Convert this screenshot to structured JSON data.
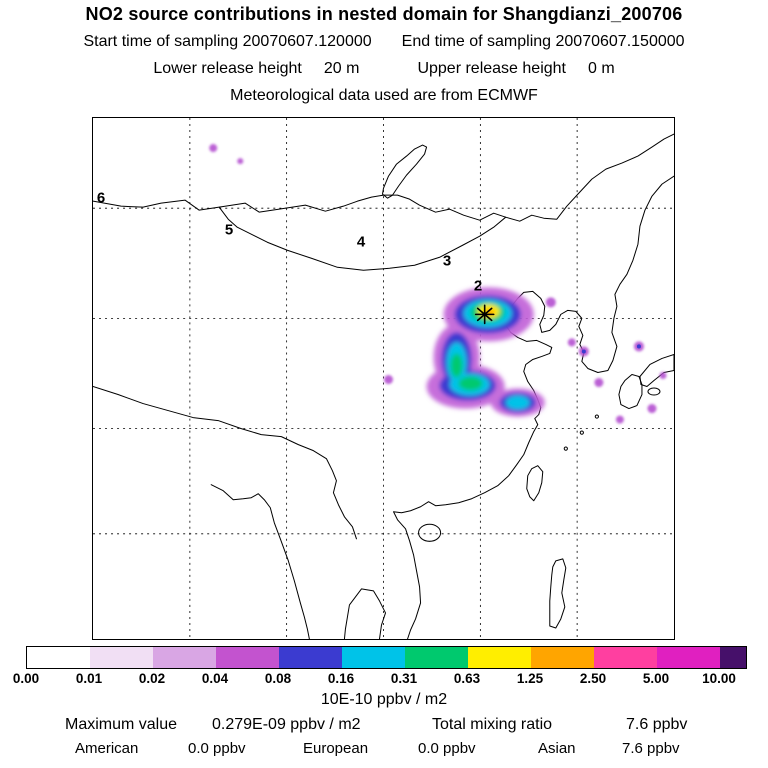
{
  "header": {
    "title": "NO2 source contributions in nested domain for Shangdianzi_200706",
    "sampling": {
      "start": "Start time of sampling 20070607.120000",
      "end": "End time of sampling 20070607.150000"
    },
    "release": {
      "lower_label": "Lower release height",
      "lower_value": "20 m",
      "upper_label": "Upper release height",
      "upper_value": "0 m"
    },
    "met_line": "Meteorological data used are from ECMWF"
  },
  "map": {
    "trajectory_day_labels": [
      "6",
      "5",
      "4",
      "3",
      "2"
    ],
    "station_marker": "asterisk at release site near label 2"
  },
  "colorbar": {
    "unit_label": "10E-10 ppbv / m2",
    "tick_labels": [
      "0.00",
      "0.01",
      "0.02",
      "0.04",
      "0.08",
      "0.16",
      "0.31",
      "0.63",
      "1.25",
      "2.50",
      "5.00",
      "10.00"
    ],
    "segment_colors": [
      "#ffffff",
      "#f1dff4",
      "#d9a6e4",
      "#c353cf",
      "#3b3bd0",
      "#00c3e8",
      "#00c96e",
      "#ffee00",
      "#ffa500",
      "#ff3fa0",
      "#e020c0",
      "#46106a"
    ]
  },
  "footer": {
    "max_label": "Maximum value",
    "max_value": "0.279E-09 ppbv / m2",
    "mixing_label": "Total mixing ratio",
    "mixing_value": "7.6 ppbv",
    "regions": [
      {
        "name": "American",
        "value": "0.0 ppbv"
      },
      {
        "name": "European",
        "value": "0.0 ppbv"
      },
      {
        "name": "Asian",
        "value": "7.6 ppbv"
      }
    ]
  }
}
